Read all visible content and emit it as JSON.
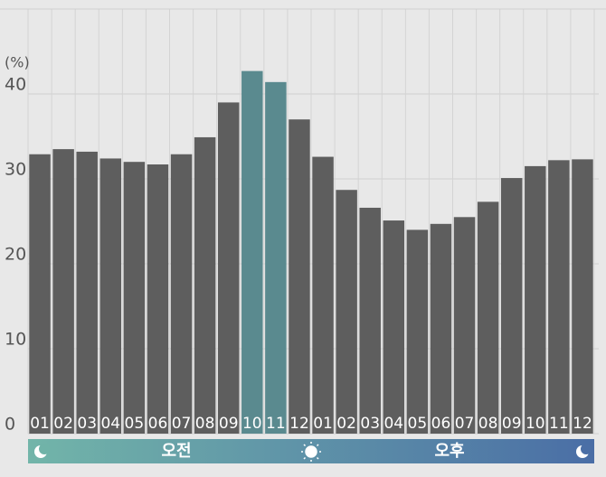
{
  "chart_data": {
    "type": "bar",
    "y_unit": "(%)",
    "categories": [
      "01",
      "02",
      "03",
      "04",
      "05",
      "06",
      "07",
      "08",
      "09",
      "10",
      "11",
      "12",
      "01",
      "02",
      "03",
      "04",
      "05",
      "06",
      "07",
      "08",
      "09",
      "10",
      "11",
      "12"
    ],
    "values": [
      32.9,
      33.5,
      33.2,
      32.4,
      32.0,
      31.7,
      32.9,
      34.9,
      39.0,
      42.7,
      41.4,
      37.0,
      32.6,
      28.7,
      26.6,
      25.1,
      24.0,
      24.7,
      25.5,
      27.3,
      30.1,
      31.5,
      32.2,
      32.3
    ],
    "colors": [
      "#5e5e5e",
      "#5e5e5e",
      "#5e5e5e",
      "#5e5e5e",
      "#5e5e5e",
      "#5e5e5e",
      "#5e5e5e",
      "#5e5e5e",
      "#5e5e5e",
      "#5a8a8f",
      "#5a8a8f",
      "#5e5e5e",
      "#5e5e5e",
      "#5e5e5e",
      "#5e5e5e",
      "#5e5e5e",
      "#5e5e5e",
      "#5e5e5e",
      "#5e5e5e",
      "#5e5e5e",
      "#5e5e5e",
      "#5e5e5e",
      "#5e5e5e",
      "#5e5e5e"
    ],
    "ylim": [
      0,
      50
    ],
    "yticks": [
      0,
      10,
      20,
      30,
      40
    ],
    "grid": true,
    "period_labels": [
      "오전",
      "오후"
    ]
  }
}
